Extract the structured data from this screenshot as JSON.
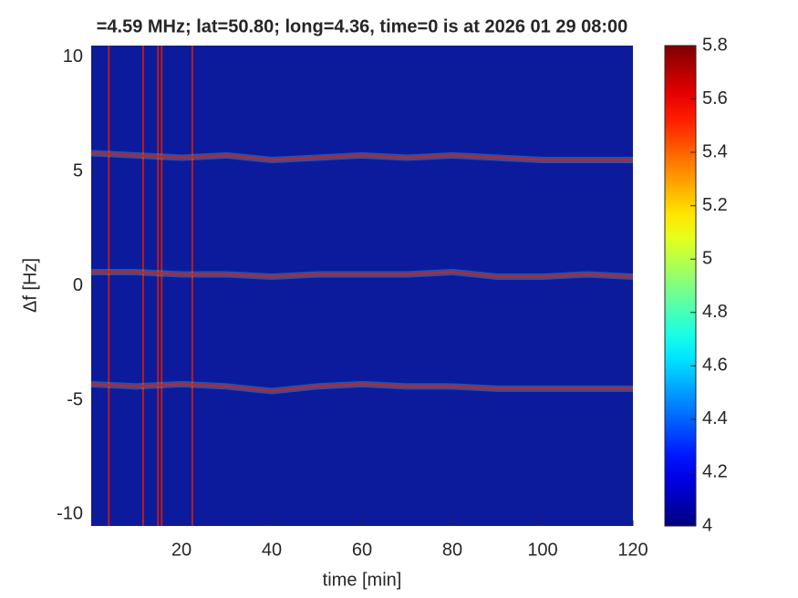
{
  "chart_data": {
    "type": "spectrogram",
    "title": "=4.59 MHz;  lat=50.80; long=4.36, time=0 is at 2026 01 29 08:00",
    "xlabel": "time [min]",
    "ylabel": "Δf [Hz]",
    "xlim": [
      0,
      120
    ],
    "xticks": [
      20,
      40,
      60,
      80,
      100,
      120
    ],
    "ylim": [
      -10.5,
      10.5
    ],
    "yticks": [
      10,
      5,
      0,
      -5,
      -10
    ],
    "background": "#0c1b9c",
    "trace_color": "#d81e05",
    "colormap": "jet",
    "x": [
      0,
      10,
      20,
      30,
      40,
      50,
      60,
      70,
      80,
      90,
      100,
      110,
      120
    ],
    "series": [
      {
        "values": [
          5.8,
          5.7,
          5.6,
          5.7,
          5.5,
          5.6,
          5.7,
          5.6,
          5.7,
          5.6,
          5.5,
          5.5,
          5.5
        ]
      },
      {
        "values": [
          0.6,
          0.6,
          0.5,
          0.5,
          0.4,
          0.5,
          0.5,
          0.5,
          0.6,
          0.4,
          0.4,
          0.5,
          0.4
        ]
      },
      {
        "values": [
          -4.3,
          -4.4,
          -4.3,
          -4.4,
          -4.6,
          -4.4,
          -4.3,
          -4.4,
          -4.4,
          -4.5,
          -4.5,
          -4.5,
          -4.5
        ]
      }
    ],
    "interference_x": [
      3.9,
      11.5,
      14.8,
      15.6,
      22.4
    ],
    "clim": [
      4,
      5.8
    ],
    "cticks": [
      4,
      4.2,
      4.4,
      4.6,
      4.8,
      5,
      5.2,
      5.4,
      5.6,
      5.8
    ]
  }
}
